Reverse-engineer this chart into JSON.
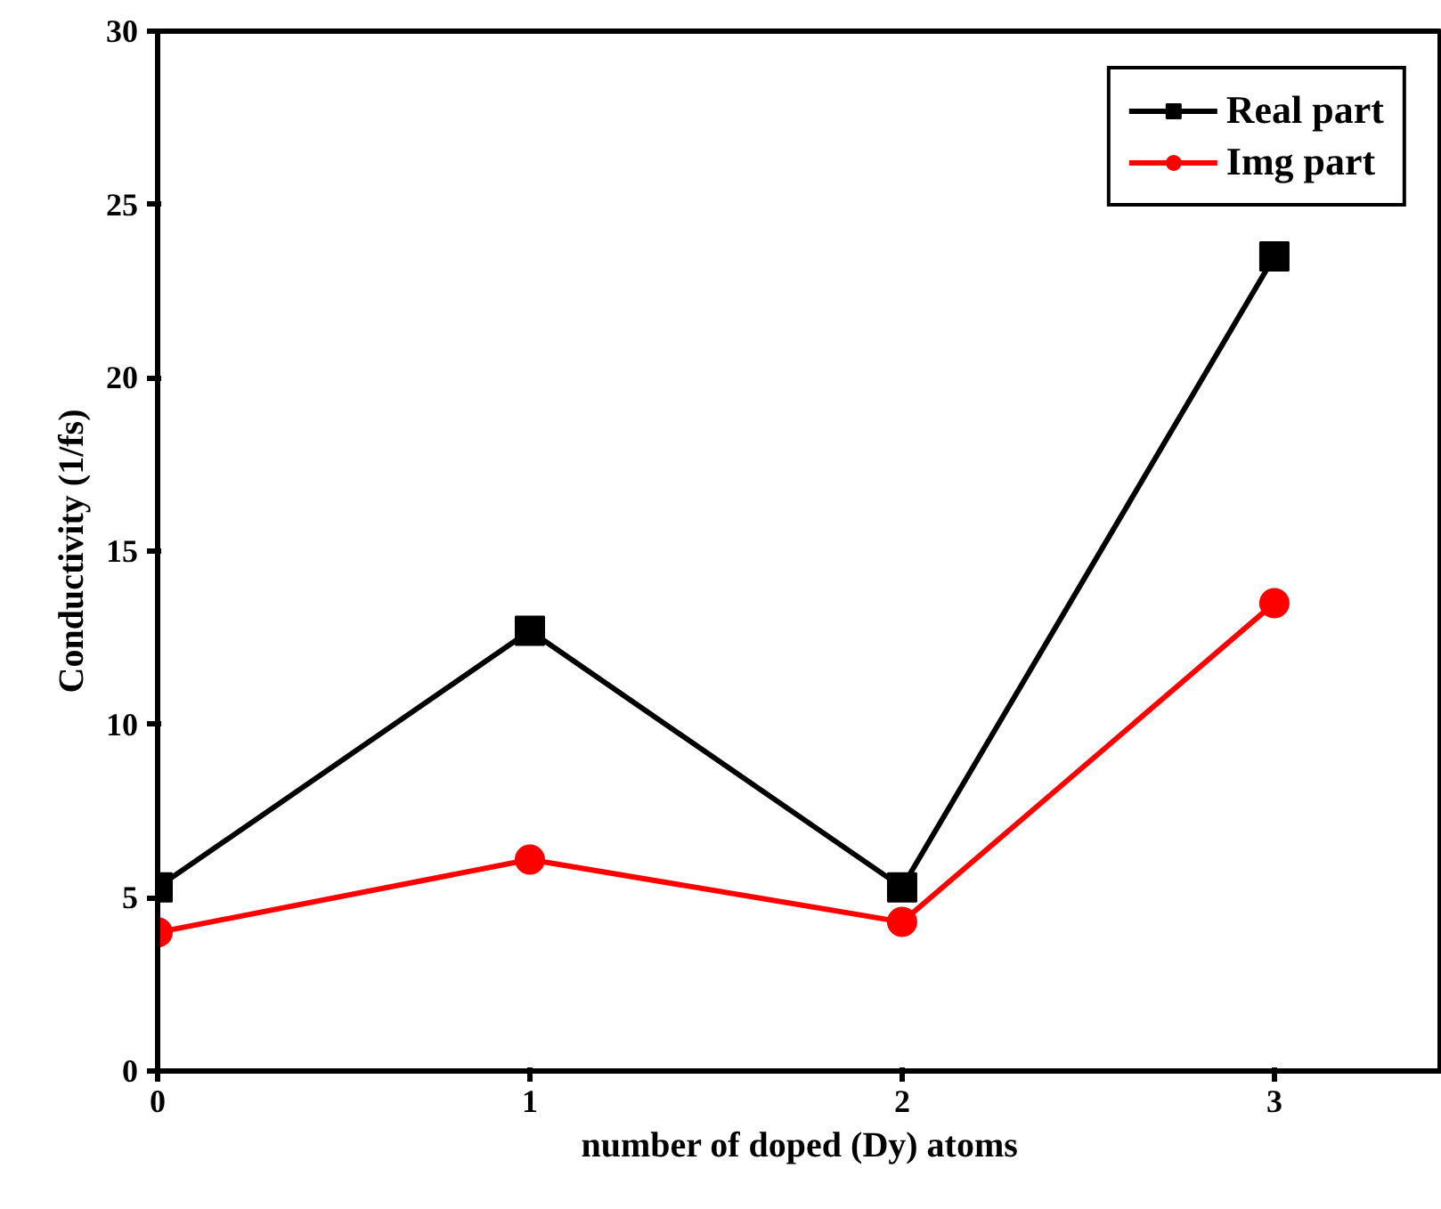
{
  "chart_data": {
    "type": "line",
    "xlabel": "number of doped (Dy) atoms",
    "ylabel": "Conductivity (1/fs)",
    "x": [
      0,
      1,
      2,
      3
    ],
    "series": [
      {
        "name": "Real part",
        "color": "#000000",
        "values": [
          5.3,
          12.7,
          5.3,
          23.5
        ],
        "marker": "square"
      },
      {
        "name": "Img part",
        "color": "#ff0000",
        "values": [
          4.0,
          6.1,
          4.3,
          13.5
        ],
        "marker": "circle"
      }
    ],
    "xlim": [
      0,
      3.45
    ],
    "ylim": [
      0,
      30
    ],
    "xticks": [
      0,
      1,
      2,
      3
    ],
    "yticks": [
      0,
      5,
      10,
      15,
      20,
      25,
      30
    ],
    "grid": false,
    "legend": "top right",
    "line_style": "solid"
  }
}
